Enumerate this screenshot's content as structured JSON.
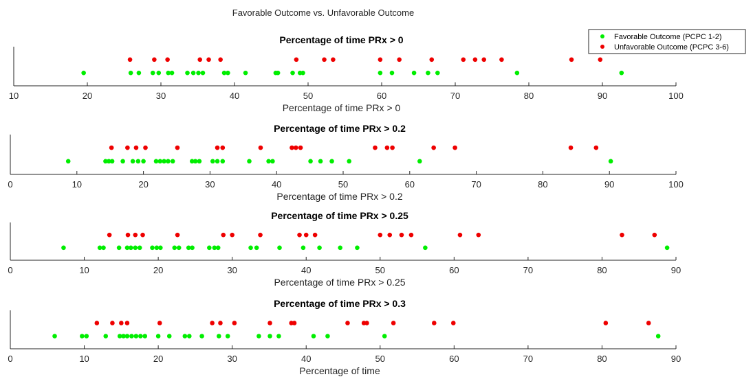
{
  "figure": {
    "suptitle": "Favorable Outcome vs. Unfavorable Outcome"
  },
  "legend": {
    "placement": "top-right",
    "items": [
      {
        "label": "Favorable Outcome (PCPC 1-2)",
        "color": "#00ee00"
      },
      {
        "label": "Unfavorable Outcome (PCPC 3-6)",
        "color": "#ee0000"
      }
    ]
  },
  "chart_data": [
    {
      "type": "scatter",
      "title": "Percentage of time PRx > 0",
      "xlabel": "Percentage of time PRx > 0",
      "xlim": [
        10,
        100
      ],
      "xticks": [
        10,
        20,
        30,
        40,
        50,
        60,
        70,
        80,
        90,
        100
      ],
      "series": [
        {
          "name": "Favorable Outcome (PCPC 1-2)",
          "color": "#00ee00",
          "x": [
            19.5,
            25.9,
            27.0,
            28.9,
            29.7,
            31.0,
            31.5,
            33.6,
            34.4,
            35.1,
            35.7,
            38.6,
            39.1,
            41.5,
            45.6,
            45.9,
            47.9,
            48.9,
            49.3,
            59.8,
            61.4,
            64.4,
            66.3,
            67.6,
            78.4,
            92.6
          ]
        },
        {
          "name": "Unfavorable Outcome (PCPC 3-6)",
          "color": "#ee0000",
          "x": [
            25.8,
            29.1,
            30.9,
            35.3,
            36.5,
            38.1,
            48.4,
            52.2,
            53.4,
            59.8,
            62.4,
            66.8,
            71.1,
            72.7,
            73.9,
            76.3,
            85.8,
            89.7
          ]
        }
      ]
    },
    {
      "type": "scatter",
      "title": "Percentage of time PRx > 0.2",
      "xlabel": "Percentage of time PRx > 0.2",
      "xlim": [
        0,
        100
      ],
      "xticks": [
        0,
        10,
        20,
        30,
        40,
        50,
        60,
        70,
        80,
        90,
        100
      ],
      "series": [
        {
          "name": "Favorable Outcome (PCPC 1-2)",
          "color": "#00ee00",
          "x": [
            8.7,
            14.3,
            14.8,
            15.3,
            16.9,
            18.4,
            19.2,
            20.0,
            21.9,
            22.5,
            23.1,
            23.7,
            24.4,
            27.3,
            27.8,
            28.4,
            30.4,
            31.1,
            31.9,
            35.9,
            38.8,
            39.4,
            45.1,
            46.6,
            48.3,
            50.9,
            61.5,
            90.2
          ]
        },
        {
          "name": "Unfavorable Outcome (PCPC 3-6)",
          "color": "#ee0000",
          "x": [
            15.2,
            17.6,
            18.9,
            20.3,
            25.1,
            31.1,
            31.9,
            37.6,
            42.3,
            42.9,
            43.6,
            54.8,
            56.6,
            57.4,
            63.6,
            66.8,
            84.2,
            88.0
          ]
        }
      ]
    },
    {
      "type": "scatter",
      "title": "Percentage of time PRx > 0.25",
      "xlabel": "Percentage of time PRx > 0.25",
      "xlim": [
        0,
        90
      ],
      "xticks": [
        0,
        10,
        20,
        30,
        40,
        50,
        60,
        70,
        80,
        90
      ],
      "series": [
        {
          "name": "Favorable Outcome (PCPC 1-2)",
          "color": "#00ee00",
          "x": [
            7.2,
            12.1,
            12.6,
            14.7,
            15.8,
            16.3,
            16.9,
            17.5,
            19.2,
            19.8,
            20.3,
            22.2,
            22.8,
            24.1,
            24.6,
            26.9,
            27.6,
            28.1,
            32.5,
            33.3,
            36.4,
            39.6,
            41.8,
            44.6,
            46.9,
            56.1,
            88.8
          ]
        },
        {
          "name": "Unfavorable Outcome (PCPC 3-6)",
          "color": "#ee0000",
          "x": [
            13.4,
            15.9,
            16.9,
            17.9,
            22.6,
            28.8,
            30.0,
            33.8,
            39.1,
            40.0,
            41.2,
            50.0,
            51.3,
            52.9,
            54.2,
            60.8,
            63.3,
            82.7,
            87.1
          ]
        }
      ]
    },
    {
      "type": "scatter",
      "title": "Percentage of time PRx > 0.3",
      "xlabel": "Percentage of time",
      "xlim": [
        0,
        90
      ],
      "xticks": [
        0,
        10,
        20,
        30,
        40,
        50,
        60,
        70,
        80,
        90
      ],
      "series": [
        {
          "name": "Favorable Outcome (PCPC 1-2)",
          "color": "#00ee00",
          "x": [
            6.0,
            9.7,
            10.3,
            12.9,
            14.8,
            15.3,
            15.8,
            16.4,
            17.0,
            17.6,
            18.2,
            20.0,
            21.5,
            23.6,
            24.2,
            25.9,
            28.2,
            29.4,
            33.6,
            35.1,
            36.3,
            41.0,
            42.9,
            50.6,
            87.6
          ]
        },
        {
          "name": "Unfavorable Outcome (PCPC 3-6)",
          "color": "#ee0000",
          "x": [
            11.7,
            13.8,
            15.0,
            15.8,
            20.2,
            27.3,
            28.4,
            30.3,
            35.1,
            38.0,
            38.4,
            45.6,
            47.8,
            48.2,
            51.8,
            57.3,
            59.9,
            80.5,
            86.3
          ]
        }
      ]
    }
  ]
}
